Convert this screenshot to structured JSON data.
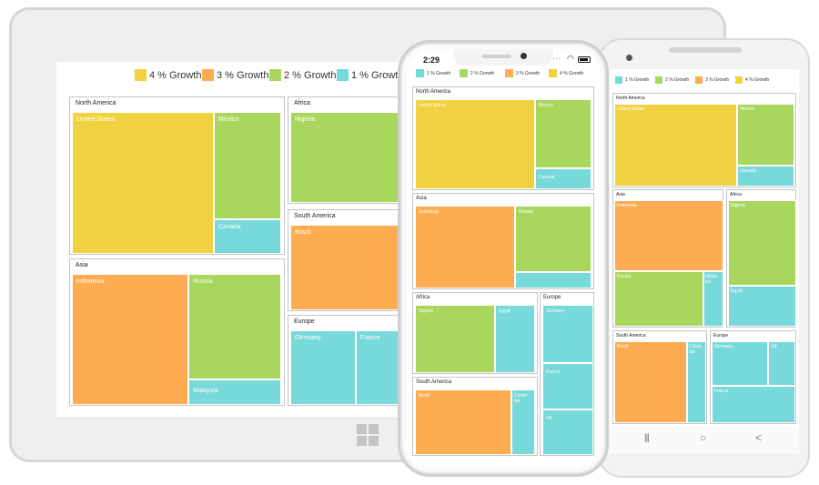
{
  "colors": {
    "growth4": "#F0D13F",
    "growth3": "#FDAC52",
    "growth2": "#A9D75E",
    "growth1": "#77D9D9"
  },
  "tablet": {
    "legend": [
      "4 % Growth",
      "3 % Growth",
      "2 % Growth",
      "1 % Growth"
    ],
    "groups": {
      "north_america": "North America",
      "asia": "Asia",
      "africa": "Africa",
      "south_america": "South America",
      "europe": "Europe"
    },
    "cells": {
      "us": "United States",
      "mexico": "Mexico",
      "canada": "Canada",
      "indonesia": "Indonesia",
      "russia": "Russia",
      "malaysia": "Malaysia",
      "nigeria": "Nigeria",
      "brazil": "Brazil",
      "germany": "Germany",
      "france": "France"
    },
    "windows_icon": "windows-logo-icon"
  },
  "iphone": {
    "time": "2:29",
    "legend": [
      "1 % Growth",
      "2 % Growth",
      "3 % Growth",
      "4 % Growth"
    ],
    "groups": {
      "north_america": "North America",
      "asia": "Asia",
      "africa": "Africa",
      "europe": "Europe",
      "south_america": "South America"
    },
    "cells": {
      "us": "United States",
      "mexico": "Mexico",
      "canada": "Canada",
      "indonesia": "Indonesia",
      "russia": "Russia",
      "nigeria": "Nigeria",
      "egypt": "Egypt",
      "germany": "Germany",
      "france": "France",
      "uk": "UK",
      "brazil": "Brazil",
      "colombia": "Colom bia"
    }
  },
  "android": {
    "legend": [
      "1 % Growth",
      "2 % Growth",
      "3 % Growth",
      "4 % Growth"
    ],
    "groups": {
      "north_america": "North America",
      "asia": "Asia",
      "africa": "Africa",
      "south_america": "South America",
      "europe": "Europe"
    },
    "cells": {
      "us": "United States",
      "mexico": "Mexico",
      "canada": "Canada",
      "indonesia": "Indonesia",
      "russia": "Russia",
      "malaysia": "Malay sia",
      "nigeria": "Nigeria",
      "egypt": "Egypt",
      "brazil": "Brazil",
      "colombia": "Colom bia",
      "germany": "Germany",
      "uk": "UK",
      "france": "France"
    },
    "nav": [
      "|||",
      "○",
      "<"
    ]
  }
}
